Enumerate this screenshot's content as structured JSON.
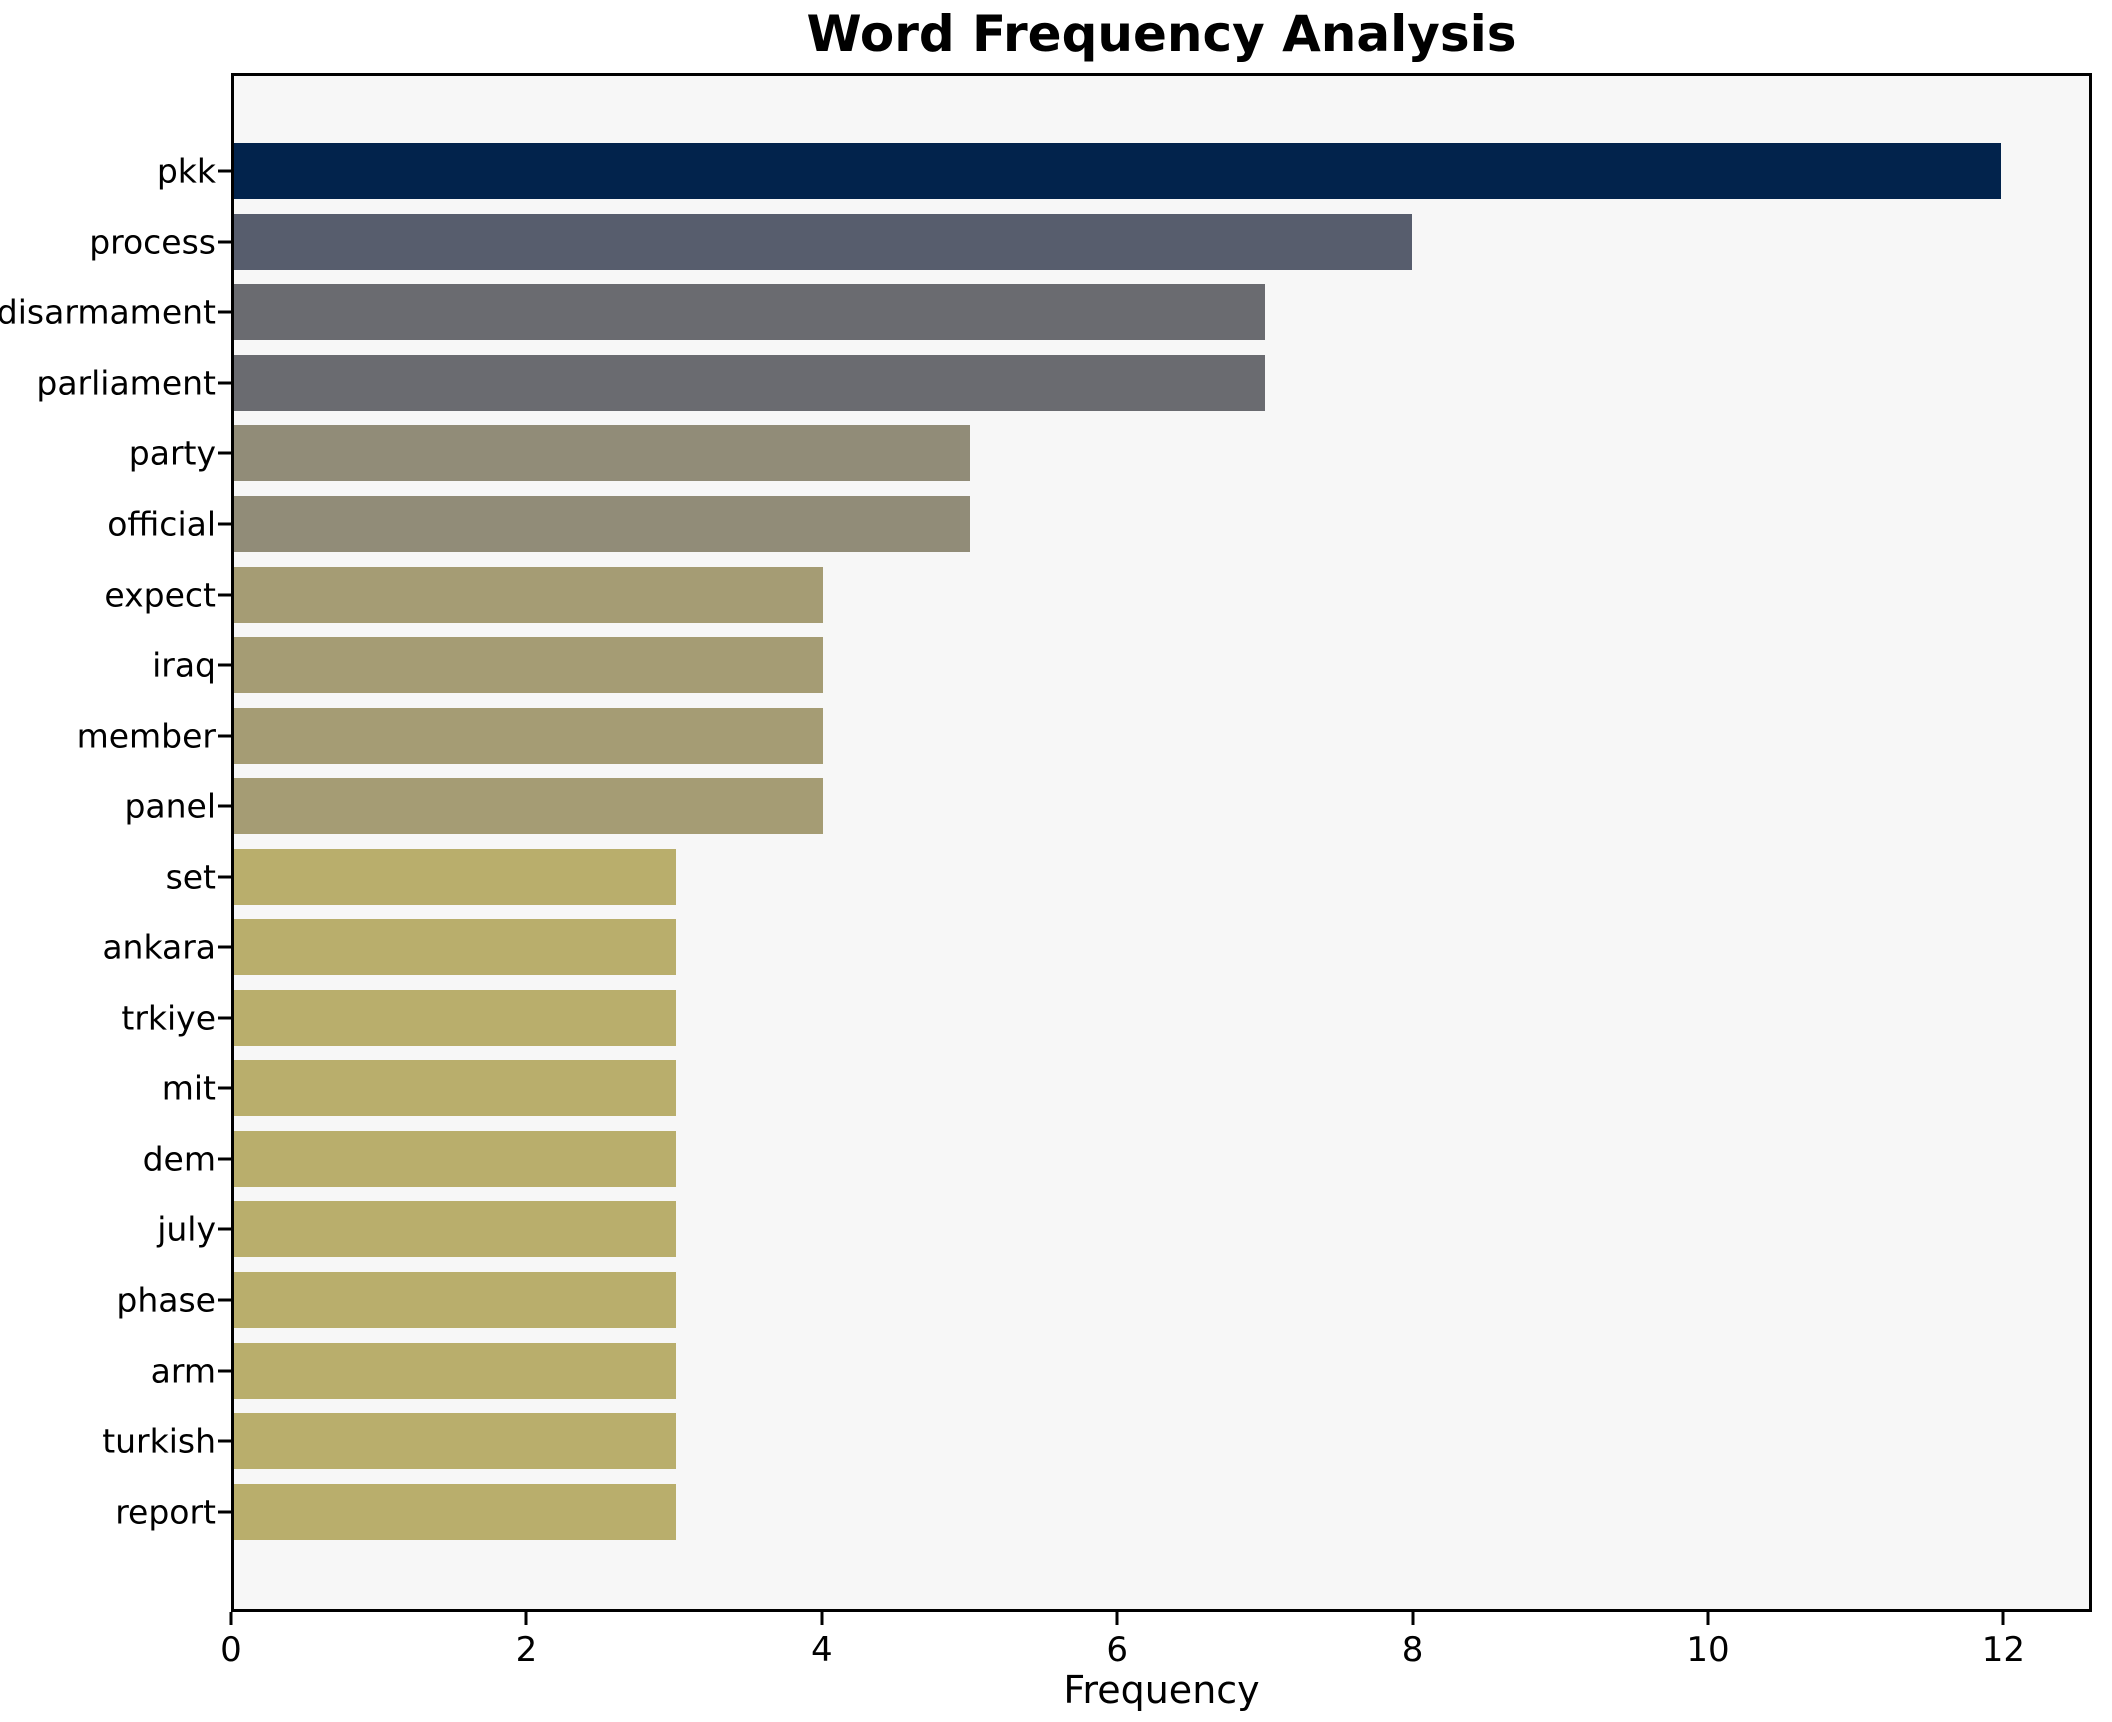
{
  "chart_data": {
    "type": "bar",
    "orientation": "horizontal",
    "title": "Word Frequency Analysis",
    "xlabel": "Frequency",
    "ylabel": "",
    "xlim": [
      0,
      12.6
    ],
    "xticks": [
      0,
      2,
      4,
      6,
      8,
      10,
      12
    ],
    "grid": false,
    "legend_position": "none",
    "plot_bg_color": "#f7f7f7",
    "figure_bg_color": "#ffffff",
    "categories": [
      "pkk",
      "process",
      "disarmament",
      "parliament",
      "party",
      "official",
      "expect",
      "iraq",
      "member",
      "panel",
      "set",
      "ankara",
      "trkiye",
      "mit",
      "dem",
      "july",
      "phase",
      "arm",
      "turkish",
      "report"
    ],
    "values": [
      12,
      8,
      7,
      7,
      5,
      5,
      4,
      4,
      4,
      4,
      3,
      3,
      3,
      3,
      3,
      3,
      3,
      3,
      3,
      3
    ],
    "bars": [
      {
        "label": "pkk",
        "value": 12,
        "color": "#02234c"
      },
      {
        "label": "process",
        "value": 8,
        "color": "#575d6d"
      },
      {
        "label": "disarmament",
        "value": 7,
        "color": "#6a6b70"
      },
      {
        "label": "parliament",
        "value": 7,
        "color": "#6a6b70"
      },
      {
        "label": "party",
        "value": 5,
        "color": "#918c78"
      },
      {
        "label": "official",
        "value": 5,
        "color": "#918c78"
      },
      {
        "label": "expect",
        "value": 4,
        "color": "#a59c74"
      },
      {
        "label": "iraq",
        "value": 4,
        "color": "#a59c74"
      },
      {
        "label": "member",
        "value": 4,
        "color": "#a59c74"
      },
      {
        "label": "panel",
        "value": 4,
        "color": "#a59c74"
      },
      {
        "label": "set",
        "value": 3,
        "color": "#b9ae6c"
      },
      {
        "label": "ankara",
        "value": 3,
        "color": "#b9ae6c"
      },
      {
        "label": "trkiye",
        "value": 3,
        "color": "#b9ae6c"
      },
      {
        "label": "mit",
        "value": 3,
        "color": "#b9ae6c"
      },
      {
        "label": "dem",
        "value": 3,
        "color": "#b9ae6c"
      },
      {
        "label": "july",
        "value": 3,
        "color": "#b9ae6c"
      },
      {
        "label": "phase",
        "value": 3,
        "color": "#b9ae6c"
      },
      {
        "label": "arm",
        "value": 3,
        "color": "#b9ae6c"
      },
      {
        "label": "turkish",
        "value": 3,
        "color": "#b9ae6c"
      },
      {
        "label": "report",
        "value": 3,
        "color": "#b9ae6c"
      }
    ]
  }
}
